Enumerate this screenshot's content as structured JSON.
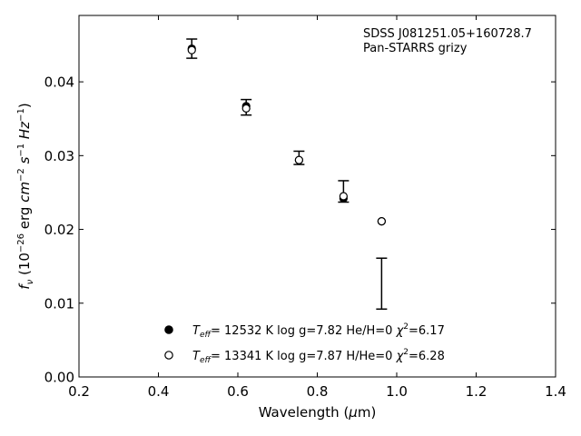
{
  "chart_data": {
    "type": "scatter",
    "xlabel": "Wavelength (μm)",
    "ylabel": "f_ν (10^-26 erg cm^-2 s^-1 Hz^-1)",
    "xlim": [
      0.2,
      1.4
    ],
    "ylim": [
      0.0,
      0.049
    ],
    "xticks": [
      "0.2",
      "0.4",
      "0.6",
      "0.8",
      "1.0",
      "1.2",
      "1.4"
    ],
    "yticks": [
      "0.00",
      "0.01",
      "0.02",
      "0.03",
      "0.04"
    ],
    "grid": false,
    "legend_position": "lower-center",
    "annotations": [
      "SDSS J081251.05+160728.7",
      "Pan-STARRS grizy"
    ],
    "observed": {
      "x": [
        0.484,
        0.621,
        0.754,
        0.866,
        0.962
      ],
      "y": [
        0.0445,
        0.0365,
        0.0295,
        0.0252,
        0.0127
      ],
      "yerr_low": [
        0.0432,
        0.0355,
        0.0288,
        0.0237,
        0.0092
      ],
      "yerr_high": [
        0.0458,
        0.0376,
        0.0306,
        0.0266,
        0.0161
      ]
    },
    "series": [
      {
        "name": "Teff= 12532 K  log g=7.82  He/H=0  χ2=6.17",
        "marker": "filled-circle",
        "x": [
          0.484,
          0.621,
          0.754,
          0.866,
          0.962
        ],
        "y": [
          0.0445,
          0.0367,
          0.0294,
          0.0242,
          0.0211
        ]
      },
      {
        "name": "Teff= 13341 K  log g=7.87  H/He=0  χ2=6.28",
        "marker": "open-circle",
        "x": [
          0.484,
          0.621,
          0.754,
          0.866,
          0.962
        ],
        "y": [
          0.0443,
          0.0364,
          0.0294,
          0.0245,
          0.0211
        ]
      }
    ],
    "legend": [
      {
        "t": "T",
        "sub": "eff",
        "rest": "= 12532 K  log g=7.82  He/H=0  ",
        "chi": "χ",
        "sup": "2",
        "end": "=6.17"
      },
      {
        "t": "T",
        "sub": "eff",
        "rest": "= 13341 K  log g=7.87  H/He=0  ",
        "chi": "χ",
        "sup": "2",
        "end": "=6.28"
      }
    ]
  }
}
